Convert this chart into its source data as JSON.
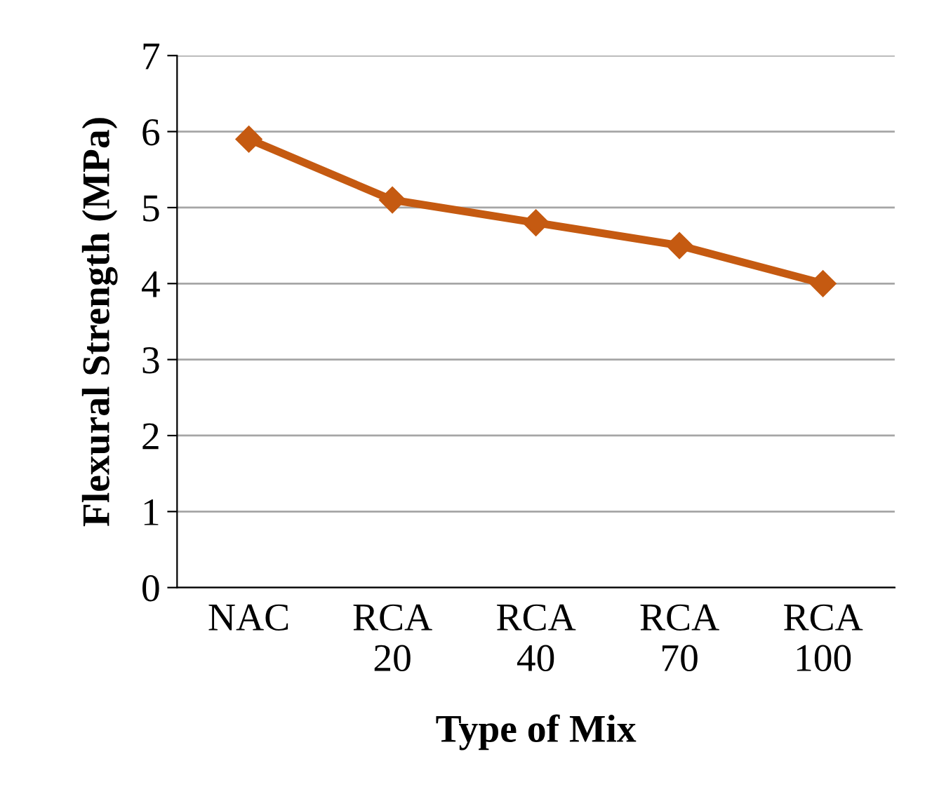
{
  "chart_data": {
    "type": "line",
    "xlabel": "Type of Mix",
    "ylabel": "Flexural Strength (MPa)",
    "categories": [
      "NAC",
      "RCA\n20",
      "RCA\n40",
      "RCA\n70",
      "RCA\n100"
    ],
    "series": [
      {
        "color": "#c55a11",
        "values": [
          5.9,
          5.1,
          4.8,
          4.5,
          4.0
        ]
      }
    ],
    "ylim": [
      0,
      7
    ],
    "yticks": [
      0,
      1,
      2,
      3,
      4,
      5,
      6,
      7
    ],
    "grid": "y",
    "marker": "diamond",
    "line_style": "solid"
  }
}
